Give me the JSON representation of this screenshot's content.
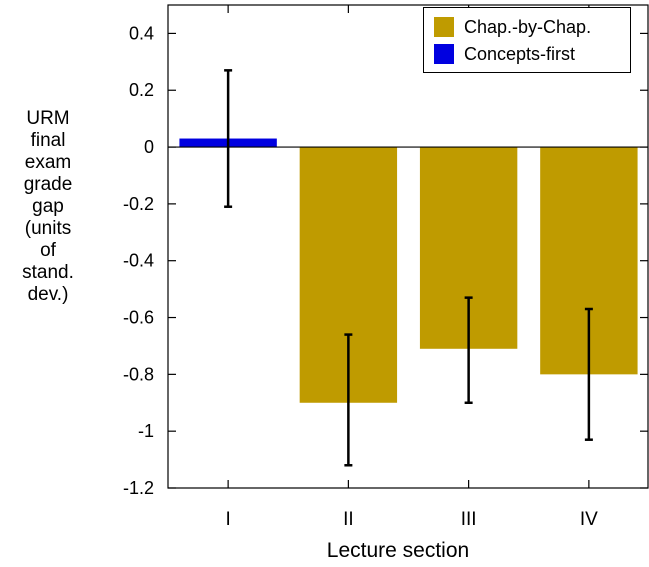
{
  "chart_data": {
    "type": "bar",
    "categories": [
      "I",
      "II",
      "III",
      "IV"
    ],
    "xlabel": "Lecture section",
    "ylabel_lines": [
      "URM",
      "final",
      "exam",
      "grade",
      "gap",
      "(units",
      "of",
      "stand.",
      "dev.)"
    ],
    "ylim": [
      -1.2,
      0.5
    ],
    "yticks": [
      0.4,
      0.2,
      0,
      -0.2,
      -0.4,
      -0.6,
      -0.8,
      -1,
      -1.2
    ],
    "ytick_labels": [
      "0.4",
      "0.2",
      "0",
      "-0.2",
      "-0.4",
      "-0.6",
      "-0.8",
      "-1",
      "-1.2"
    ],
    "series": [
      {
        "name": "Chap.-by-Chap.",
        "color": "#bf9b00",
        "values": [
          null,
          -0.9,
          -0.71,
          -0.8
        ]
      },
      {
        "name": "Concepts-first",
        "color": "#0000e0",
        "values": [
          0.03,
          null,
          null,
          null
        ]
      }
    ],
    "error_bars": [
      {
        "category": "I",
        "low": -0.21,
        "high": 0.27
      },
      {
        "category": "II",
        "low": -1.12,
        "high": -0.66
      },
      {
        "category": "III",
        "low": -0.9,
        "high": -0.53
      },
      {
        "category": "IV",
        "low": -1.03,
        "high": -0.57
      }
    ],
    "legend": "top-right",
    "grid": false
  }
}
